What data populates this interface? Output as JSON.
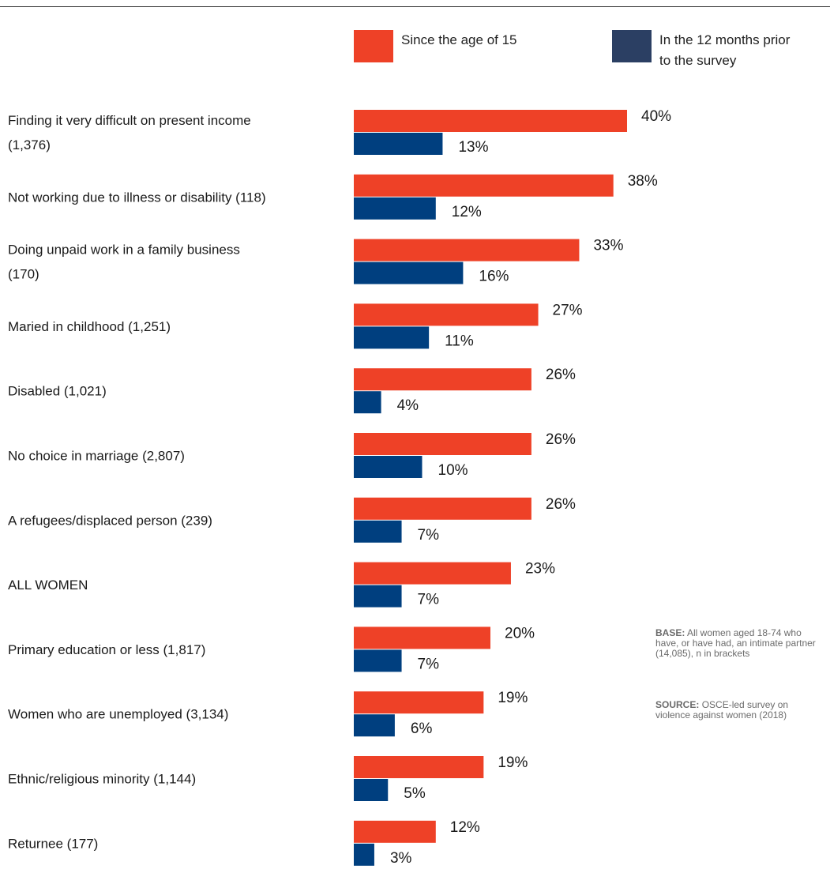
{
  "chart_data": {
    "type": "bar",
    "orientation": "horizontal",
    "title": "",
    "xlabel": "",
    "ylabel": "",
    "xlim": [
      0,
      40
    ],
    "grid": false,
    "legend_position": "top",
    "value_suffix": "%",
    "categories": [
      "Finding it very difficult on present income (1,376)",
      "Not working due to illness or disability (118)",
      "Doing unpaid work in a family business (170)",
      "Maried in childhood (1,251)",
      "Disabled (1,021)",
      "No choice in marriage (2,807)",
      "A refugees/displaced person (239)",
      "ALL WOMEN",
      "Primary education or less (1,817)",
      "Women who are unemployed (3,134)",
      "Ethnic/religious minority (1,144)",
      "Returnee (177)"
    ],
    "category_lines": [
      [
        "Finding it very difficult on present income",
        "(1,376)"
      ],
      [
        "Not working due to illness or disability (118)"
      ],
      [
        "Doing unpaid work in a family business",
        "(170)"
      ],
      [
        "Maried in childhood (1,251)"
      ],
      [
        "Disabled (1,021)"
      ],
      [
        "No choice in marriage (2,807)"
      ],
      [
        "A refugees/displaced person (239)"
      ],
      [
        "ALL WOMEN"
      ],
      [
        "Primary education or less (1,817)"
      ],
      [
        "Women who are unemployed (3,134)"
      ],
      [
        "Ethnic/religious minority (1,144)"
      ],
      [
        "Returnee (177)"
      ]
    ],
    "series": [
      {
        "name": "Since the age of 15",
        "color": "#EE4127",
        "values": [
          40,
          38,
          33,
          27,
          26,
          26,
          26,
          23,
          20,
          19,
          19,
          12
        ]
      },
      {
        "name": "In the 12 months prior to the survey",
        "color": "#003F7F",
        "values": [
          13,
          12,
          16,
          11,
          4,
          10,
          7,
          7,
          7,
          6,
          5,
          3
        ]
      }
    ]
  },
  "legend": [
    {
      "lines": [
        "Since the age of 15"
      ],
      "color": "#EE4127"
    },
    {
      "lines": [
        "In the 12 months prior",
        "to the survey"
      ],
      "color": "#2B3F63"
    }
  ],
  "notes": {
    "base_key": "BASE:",
    "base_text": "All women aged 18-74 who have, or have had, an intimate partner (14,085), n in brackets",
    "source_key": "SOURCE:",
    "source_text": "OSCE-led survey on violence against women (2018)"
  }
}
